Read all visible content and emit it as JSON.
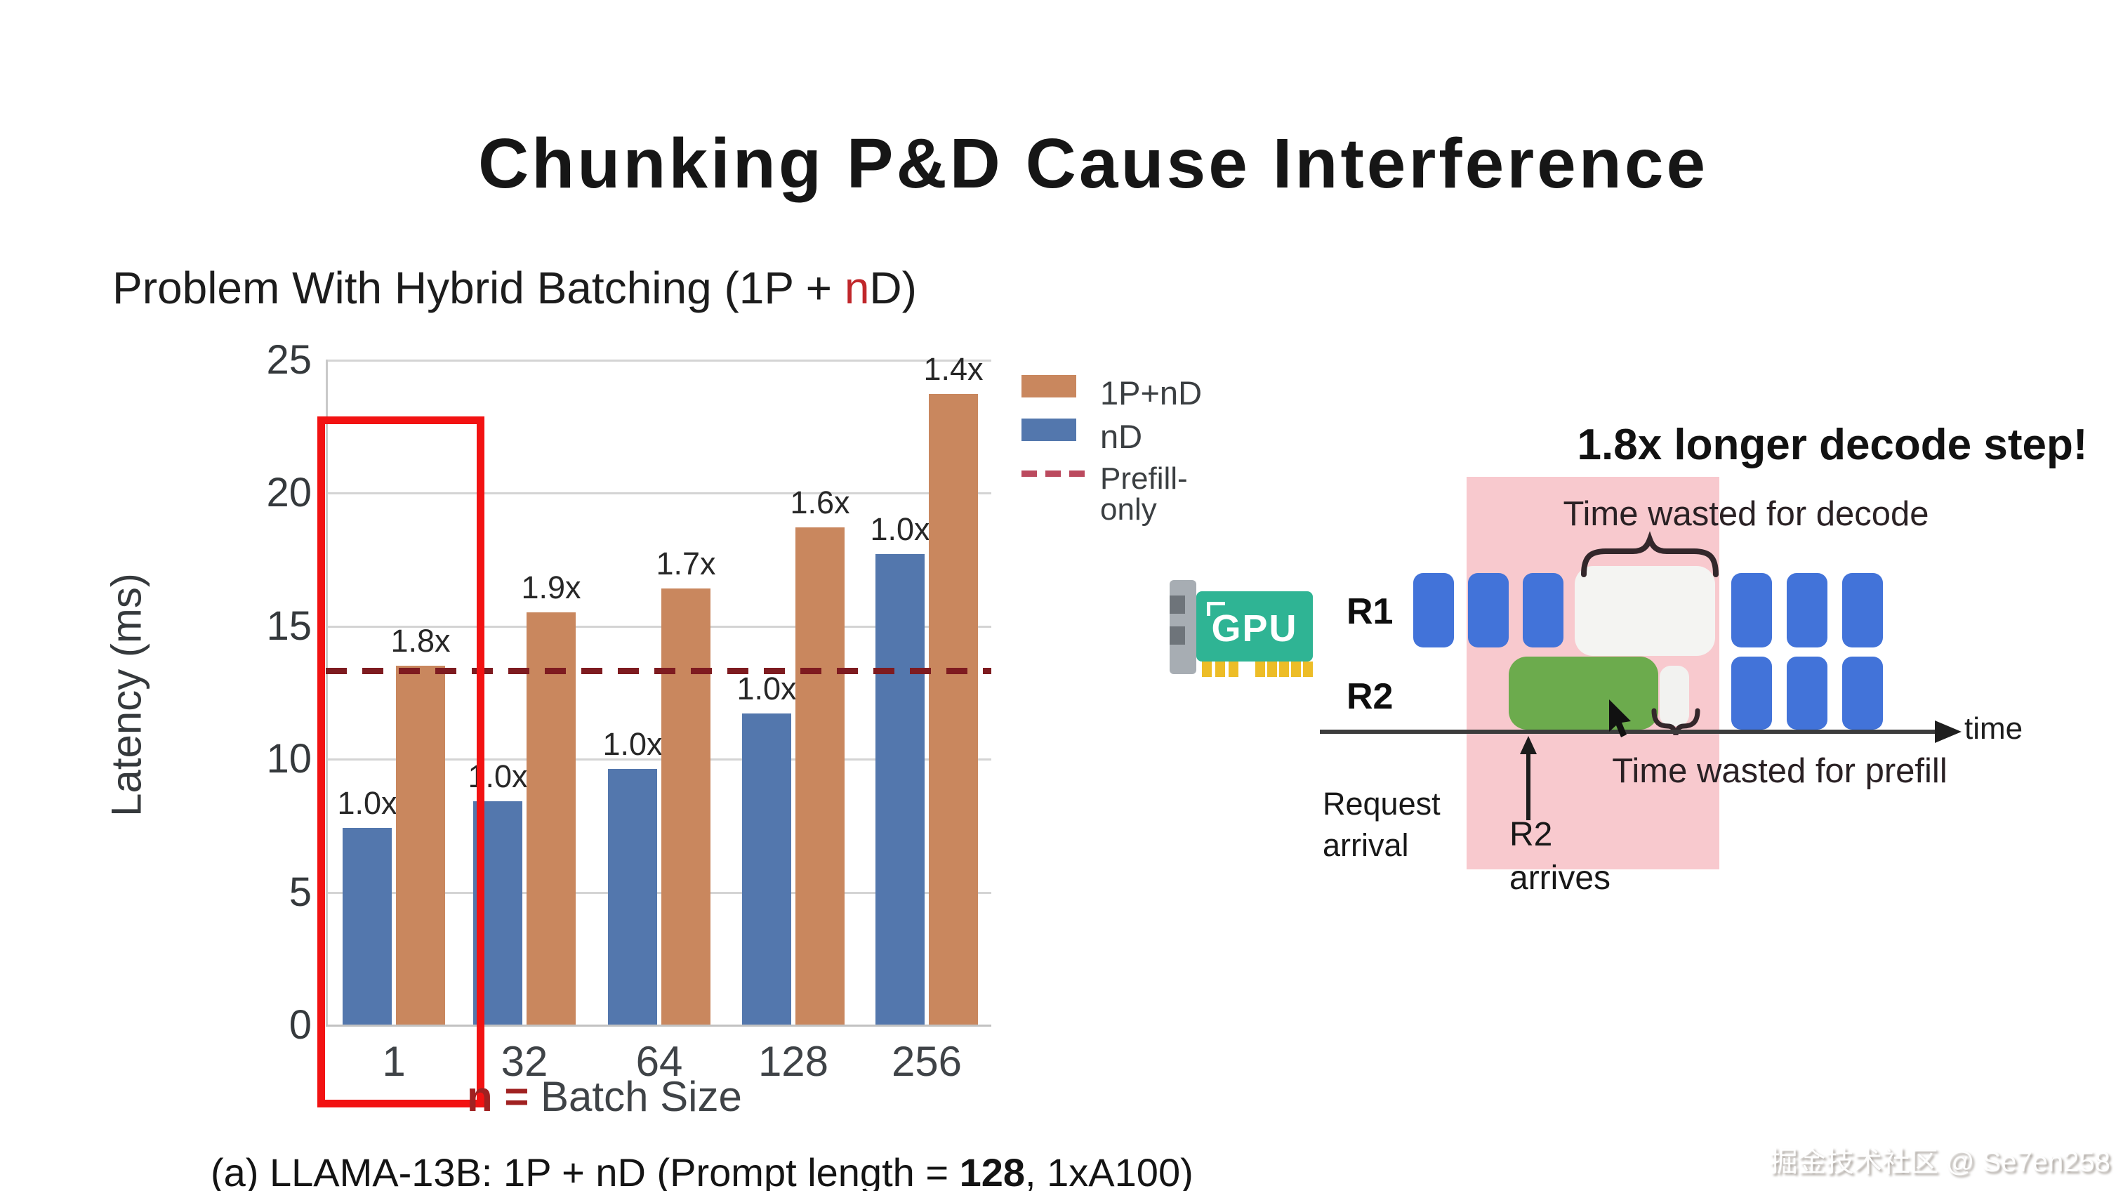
{
  "slide": {
    "title": "Chunking P&D Cause Interference",
    "subtitle_prefix": "Problem With Hybrid Batching (1P + ",
    "subtitle_highlight": "n",
    "subtitle_suffix": "D)"
  },
  "chart_data": {
    "type": "bar",
    "categories": [
      "1",
      "32",
      "64",
      "128",
      "256"
    ],
    "series": [
      {
        "name": "1P+nD",
        "color": "#c9875e",
        "values": [
          13.5,
          15.5,
          16.4,
          18.7,
          23.7
        ],
        "bar_labels": [
          "1.8x",
          "1.9x",
          "1.7x",
          "1.6x",
          "1.4x"
        ]
      },
      {
        "name": "nD",
        "color": "#5377ad",
        "values": [
          7.4,
          8.4,
          9.6,
          11.7,
          17.7
        ],
        "bar_labels": [
          "1.0x",
          "1.0x",
          "1.0x",
          "1.0x",
          "1.0x"
        ]
      }
    ],
    "reference_line": {
      "label": "Prefill-only",
      "value": 13.4,
      "color": "#7e1b20"
    },
    "ylabel": "Latency (ms)",
    "ylim": [
      0,
      25
    ],
    "yticks": [
      0,
      5,
      10,
      15,
      20,
      25
    ],
    "grid": true,
    "legend_position": "upper right",
    "highlight_box": {
      "category": "1",
      "color": "#f21212"
    },
    "x_annotation": {
      "red_part": "n = ",
      "rest_part": "Batch Size"
    },
    "caption_pre": "(a) LLAMA-13B: 1P + nD (Prompt length = ",
    "caption_bold": "128",
    "caption_post": ", 1xA100)"
  },
  "diagram": {
    "heading": "1.8x longer decode step!",
    "decode_note": "Time wasted for decode",
    "prefill_note": "Time wasted for prefill",
    "time_label": "time",
    "request_arrival_line1": "Request",
    "request_arrival_line2": "arrival",
    "r2_arrives_line1": "R2",
    "r2_arrives_line2": "arrives",
    "gpu_label": "GPU",
    "rows": [
      {
        "label": "R1",
        "blocks": [
          "decode",
          "decode",
          "decode",
          "stall",
          "decode",
          "decode",
          "decode"
        ]
      },
      {
        "label": "R2",
        "blocks": [
          "prefill",
          "sliver",
          "decode",
          "decode",
          "decode"
        ]
      }
    ],
    "colors": {
      "decode": "#4273d9",
      "prefill": "#6cab4d",
      "stall": "#f4f4f2",
      "sliver": "#f2f2f0",
      "band": "#f8c9ce",
      "gpu_green": "#2fb494",
      "gpu_pins": "#edbd27",
      "gpu_bracket": "#a7adb3"
    }
  },
  "colors": {
    "legend_dash": "#bb4a5e",
    "axis_text": "#3f4347",
    "n_red": "#a02121"
  },
  "watermark": "掘金技术社区 @ Se7en258"
}
